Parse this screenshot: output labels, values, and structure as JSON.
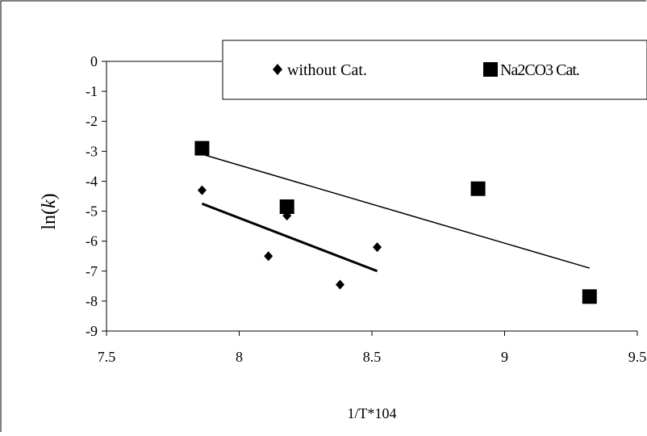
{
  "chart_data": {
    "type": "scatter",
    "title": "",
    "xlabel": "1/T*104",
    "ylabel_main": "ln(",
    "ylabel_var": "k",
    "ylabel_close": ")",
    "xlim": [
      7.5,
      9.5
    ],
    "ylim": [
      -9,
      0
    ],
    "x_ticks": [
      7.5,
      8,
      8.5,
      9,
      9.5
    ],
    "x_tick_labels": [
      "7.5",
      "8",
      "8.5",
      "9",
      "9.5"
    ],
    "y_ticks": [
      0,
      -1,
      -2,
      -3,
      -4,
      -5,
      -6,
      -7,
      -8,
      -9
    ],
    "y_tick_labels": [
      "0",
      "-1",
      "-2",
      "-3",
      "-4",
      "-5",
      "-6",
      "-7",
      "-8",
      "-9"
    ],
    "grid": false,
    "legend_position": "top",
    "series": [
      {
        "name": "without Cat.",
        "marker": "diamond",
        "color": "#000000",
        "points": [
          {
            "x": 7.86,
            "y": -4.3
          },
          {
            "x": 8.11,
            "y": -6.5
          },
          {
            "x": 8.18,
            "y": -5.15
          },
          {
            "x": 8.38,
            "y": -7.45
          },
          {
            "x": 8.52,
            "y": -6.2
          }
        ],
        "trendline": {
          "x": [
            7.86,
            8.52
          ],
          "y": [
            -4.75,
            -7.0
          ],
          "width": "thick"
        }
      },
      {
        "name": "Na2CO3 Cat.",
        "marker": "square",
        "color": "#000000",
        "points": [
          {
            "x": 7.86,
            "y": -2.9
          },
          {
            "x": 8.18,
            "y": -4.85
          },
          {
            "x": 8.9,
            "y": -4.25
          },
          {
            "x": 9.32,
            "y": -7.85
          }
        ],
        "trendline": {
          "x": [
            7.86,
            9.32
          ],
          "y": [
            -3.1,
            -6.9
          ],
          "width": "thin"
        }
      }
    ]
  }
}
